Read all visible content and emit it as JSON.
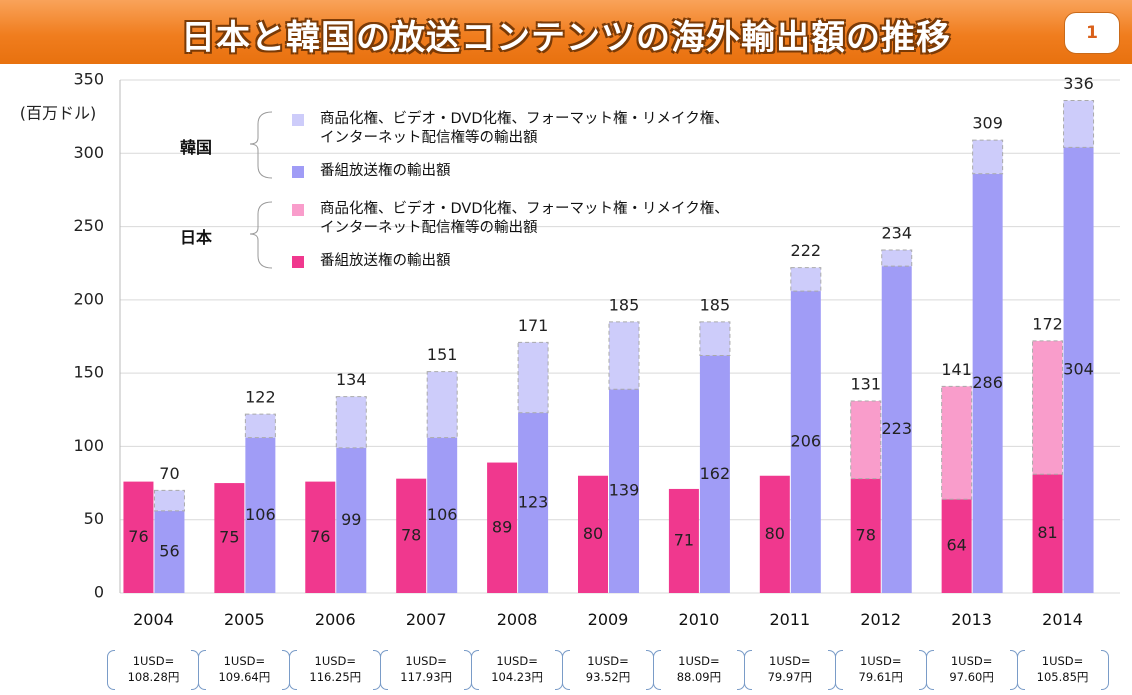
{
  "page_number": "1",
  "chart_data": {
    "type": "bar",
    "title": "日本と韓国の放送コンテンツの海外輸出額の推移",
    "y_label": "(百万ドル)",
    "categories": [
      "2004",
      "2005",
      "2006",
      "2007",
      "2008",
      "2009",
      "2010",
      "2011",
      "2012",
      "2013",
      "2014"
    ],
    "series": [
      {
        "name": "番組放送権の輸出額",
        "group": "日本",
        "stack": "jp",
        "color": "#f0388e",
        "values": [
          76,
          75,
          76,
          78,
          89,
          80,
          71,
          80,
          78,
          64,
          81
        ]
      },
      {
        "name": "商品化権、ビデオ・DVD化権、フォーマット権・リメイク権、\nインターネット配信権等の輸出額",
        "group": "日本",
        "stack": "jp",
        "color": "#f99dcb",
        "values": [
          null,
          null,
          null,
          null,
          null,
          null,
          null,
          null,
          53,
          77,
          91
        ],
        "totals": [
          null,
          null,
          null,
          null,
          null,
          null,
          null,
          null,
          131,
          141,
          172
        ]
      },
      {
        "name": "番組放送権の輸出額",
        "group": "韓国",
        "stack": "kr",
        "color": "#a09cf6",
        "values": [
          56,
          106,
          99,
          106,
          123,
          139,
          162,
          206,
          223,
          286,
          304
        ]
      },
      {
        "name": "商品化権、ビデオ・DVD化権、フォーマット権・リメイク権、\nインターネット配信権等の輸出額",
        "group": "韓国",
        "stack": "kr",
        "color": "#cdccfa",
        "values": [
          14,
          16,
          35,
          45,
          48,
          46,
          23,
          16,
          11,
          23,
          32
        ],
        "totals": [
          70,
          122,
          134,
          151,
          171,
          185,
          185,
          222,
          234,
          309,
          336
        ]
      }
    ],
    "exchange_rates": [
      "1USD=\n108.28円",
      "1USD=\n109.64円",
      "1USD=\n116.25円",
      "1USD=\n117.93円",
      "1USD=\n104.23円",
      "1USD=\n93.52円",
      "1USD=\n88.09円",
      "1USD=\n79.97円",
      "1USD=\n79.61円",
      "1USD=\n97.60円",
      "1USD=\n105.85円"
    ],
    "ylim": [
      0,
      350
    ],
    "yticks": [
      0,
      50,
      100,
      150,
      200,
      250,
      300,
      350
    ],
    "grid": true
  }
}
